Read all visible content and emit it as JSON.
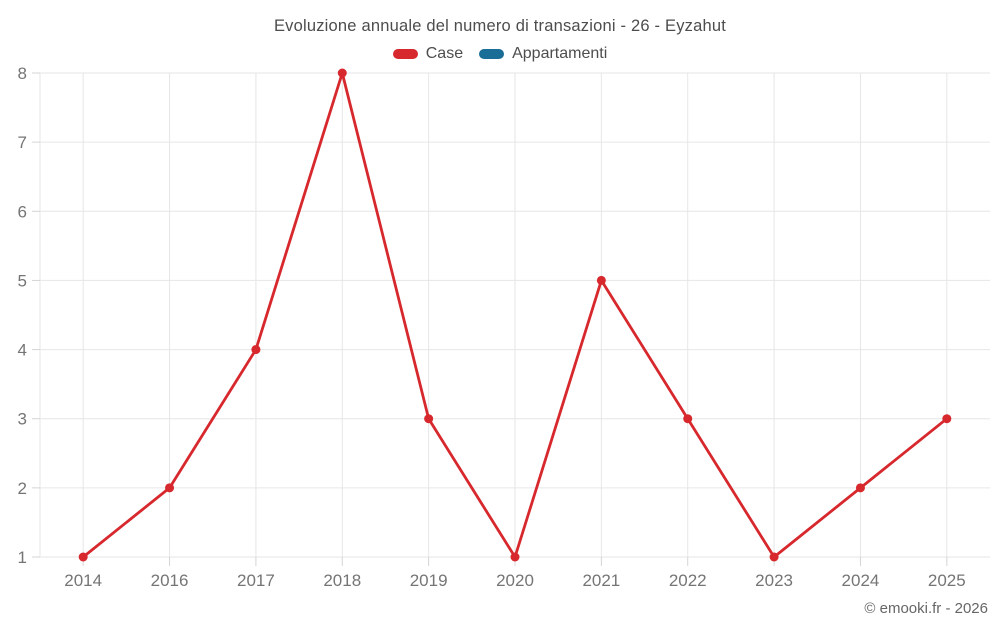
{
  "chart": {
    "title": "Evoluzione annuale del numero di transazioni - 26 - Eyzahut",
    "legend": [
      {
        "label": "Case",
        "color": "#d7282d"
      },
      {
        "label": "Appartamenti",
        "color": "#1a6d96"
      }
    ],
    "footer": "© emooki.fr - 2026",
    "style": {
      "grid_color": "#e6e6e6",
      "tick_color": "#d4d4d4",
      "axis_text_color": "#757575",
      "title_text_color": "#4d4d4d"
    }
  },
  "chart_data": {
    "type": "line",
    "title": "Evoluzione annuale del numero di transazioni - 26 - Eyzahut",
    "categories": [
      "2014",
      "2016",
      "2017",
      "2018",
      "2019",
      "2020",
      "2021",
      "2022",
      "2023",
      "2024",
      "2025"
    ],
    "series": [
      {
        "name": "Case",
        "color": "#d7282d",
        "values": [
          1,
          2,
          4,
          8,
          3,
          1,
          5,
          3,
          1,
          2,
          3
        ]
      },
      {
        "name": "Appartamenti",
        "color": "#1a6d96",
        "values": []
      }
    ],
    "xlabel": "",
    "ylabel": "",
    "ylim": [
      1,
      8
    ],
    "yticks": [
      1,
      2,
      3,
      4,
      5,
      6,
      7,
      8
    ],
    "grid": true,
    "legend_position": "top",
    "marker_radius": 4.5,
    "line_width": 2.8
  }
}
